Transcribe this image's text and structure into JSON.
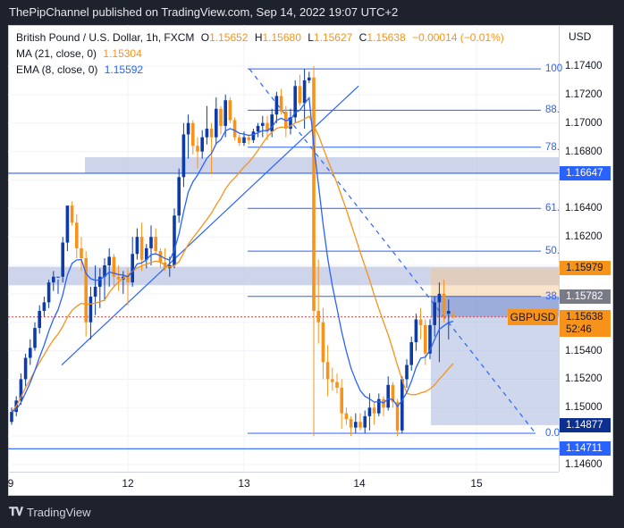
{
  "header": {
    "published": "ThePipChannel published on TradingView.com, Sep 14, 2022 19:07 UTC+2"
  },
  "legend": {
    "symbol": "British Pound / U.S. Dollar, 1h, FXCM",
    "open_label": "O",
    "open": "1.15652",
    "high_label": "H",
    "high": "1.15680",
    "low_label": "L",
    "low": "1.15627",
    "close_label": "C",
    "close": "1.15638",
    "change": "−0.00014 (−0.01%)",
    "ma_label": "MA (21, close, 0)",
    "ma_value": "1.15304",
    "ema_label": "EMA (8, close, 0)",
    "ema_value": "1.15592"
  },
  "price_scale": {
    "currency": "USD",
    "ticks": [
      "1.17400",
      "1.17200",
      "1.17000",
      "1.16800",
      "1.16400",
      "1.16200",
      "1.15400",
      "1.15200",
      "1.15000",
      "1.14600"
    ],
    "labels": [
      {
        "value": "1.16647",
        "bg": "#2962ff",
        "fg": "#ffffff"
      },
      {
        "value": "1.15979",
        "bg": "#f7931a",
        "fg": "#131722"
      },
      {
        "value": "1.15782",
        "bg": "#787b86",
        "fg": "#ffffff"
      },
      {
        "value": "1.15638",
        "countdown": "52:46",
        "bg": "#f7931a",
        "fg": "#131722"
      },
      {
        "value": "1.14877",
        "bg": "#0d2f8f",
        "fg": "#ffffff"
      },
      {
        "value": "1.14711",
        "bg": "#2962ff",
        "fg": "#ffffff"
      }
    ]
  },
  "symbol_tag": "GBPUSD",
  "time_axis": [
    "9",
    "12",
    "13",
    "14",
    "15"
  ],
  "fib_levels": [
    "100",
    "88.",
    "78.",
    "61.",
    "50.",
    "38.",
    "0.0"
  ],
  "colors": {
    "up": "#0d3ba8",
    "down": "#f7931a",
    "ema": "#2962ff",
    "ma": "#f7931a",
    "line": "#2962ff"
  },
  "brand": {
    "name": "TradingView"
  },
  "chart_data": {
    "type": "candlestick",
    "title": "British Pound / U.S. Dollar, 1h, FXCM",
    "xlabel": "",
    "ylabel": "USD",
    "x_ticks": [
      "9",
      "12",
      "13",
      "14",
      "15"
    ],
    "ylim": [
      1.1455,
      1.1752
    ],
    "current_price": 1.15638,
    "ohlc_last": {
      "open": 1.15652,
      "high": 1.1568,
      "low": 1.15627,
      "close": 1.15638
    },
    "indicators": [
      {
        "name": "MA (21, close, 0)",
        "last": 1.15304,
        "color": "#f7931a"
      },
      {
        "name": "EMA (8, close, 0)",
        "last": 1.15592,
        "color": "#2962ff"
      }
    ],
    "horizontal_levels": [
      1.16647,
      1.14711
    ],
    "fibonacci_retracement": {
      "high": 1.1738,
      "low": 1.1482,
      "levels": [
        {
          "ratio": "1",
          "price": 1.1738
        },
        {
          "ratio": "0.886",
          "price": 1.1709
        },
        {
          "ratio": "0.786",
          "price": 1.1683
        },
        {
          "ratio": "0.618",
          "price": 1.164
        },
        {
          "ratio": "0.5",
          "price": 1.161
        },
        {
          "ratio": "0.382",
          "price": 1.15782
        },
        {
          "ratio": "0",
          "price": 1.1482
        }
      ]
    },
    "zones": [
      {
        "type": "supply",
        "from": 1.1668,
        "to": 1.1676
      },
      {
        "type": "demand",
        "from": 1.1586,
        "to": 1.1599
      },
      {
        "type": "short_position",
        "entry": 1.15782,
        "stop": 1.15979,
        "target": 1.14877
      }
    ],
    "candles": [
      [
        1.149,
        1.15,
        1.1488,
        1.1497
      ],
      [
        1.1497,
        1.1508,
        1.1494,
        1.1505
      ],
      [
        1.1505,
        1.1524,
        1.1502,
        1.152
      ],
      [
        1.152,
        1.1538,
        1.1515,
        1.1535
      ],
      [
        1.1535,
        1.1548,
        1.153,
        1.1542
      ],
      [
        1.1542,
        1.156,
        1.154,
        1.1556
      ],
      [
        1.1556,
        1.1572,
        1.1552,
        1.1568
      ],
      [
        1.1568,
        1.1578,
        1.1564,
        1.1574
      ],
      [
        1.1574,
        1.159,
        1.157,
        1.1588
      ],
      [
        1.1588,
        1.1596,
        1.1582,
        1.1592
      ],
      [
        1.1592,
        1.159,
        1.158,
        1.1592
      ],
      [
        1.1592,
        1.162,
        1.1588,
        1.1616
      ],
      [
        1.1616,
        1.1632,
        1.161,
        1.1642
      ],
      [
        1.1642,
        1.1645,
        1.1628,
        1.163
      ],
      [
        1.163,
        1.1636,
        1.1605,
        1.1612
      ],
      [
        1.1612,
        1.162,
        1.1596,
        1.1605
      ],
      [
        1.1605,
        1.161,
        1.155,
        1.156
      ],
      [
        1.156,
        1.1585,
        1.1548,
        1.1578
      ],
      [
        1.1578,
        1.16,
        1.1565,
        1.1585
      ],
      [
        1.1585,
        1.1598,
        1.157,
        1.1592
      ],
      [
        1.1592,
        1.1605,
        1.1575,
        1.16
      ],
      [
        1.16,
        1.1612,
        1.1585,
        1.1606
      ],
      [
        1.1606,
        1.1608,
        1.1585,
        1.1592
      ],
      [
        1.1592,
        1.16,
        1.1582,
        1.159
      ],
      [
        1.159,
        1.1596,
        1.158,
        1.1592
      ],
      [
        1.1592,
        1.1598,
        1.1572,
        1.1588
      ],
      [
        1.1588,
        1.162,
        1.1585,
        1.1608
      ],
      [
        1.1608,
        1.1626,
        1.1604,
        1.162
      ],
      [
        1.162,
        1.163,
        1.1596,
        1.1604
      ],
      [
        1.1604,
        1.1615,
        1.1598,
        1.1612
      ],
      [
        1.1612,
        1.1628,
        1.16,
        1.162
      ],
      [
        1.162,
        1.1626,
        1.1608,
        1.161
      ],
      [
        1.161,
        1.1612,
        1.1598,
        1.1602
      ],
      [
        1.1602,
        1.1612,
        1.1596,
        1.1598
      ],
      [
        1.1598,
        1.1606,
        1.1592,
        1.16
      ],
      [
        1.16,
        1.164,
        1.1598,
        1.1635
      ],
      [
        1.1635,
        1.1668,
        1.163,
        1.1662
      ],
      [
        1.1662,
        1.17,
        1.1655,
        1.1692
      ],
      [
        1.1692,
        1.1706,
        1.1675,
        1.17
      ],
      [
        1.17,
        1.1702,
        1.1678,
        1.1684
      ],
      [
        1.1684,
        1.169,
        1.1668,
        1.168
      ],
      [
        1.168,
        1.1695,
        1.1675,
        1.169
      ],
      [
        1.169,
        1.1712,
        1.1685,
        1.1696
      ],
      [
        1.1696,
        1.17,
        1.1664,
        1.169
      ],
      [
        1.169,
        1.1718,
        1.1685,
        1.171
      ],
      [
        1.171,
        1.1712,
        1.1692,
        1.1698
      ],
      [
        1.1698,
        1.172,
        1.169,
        1.1716
      ],
      [
        1.1716,
        1.1718,
        1.17,
        1.1702
      ],
      [
        1.1702,
        1.1704,
        1.1688,
        1.169
      ],
      [
        1.169,
        1.1692,
        1.1684,
        1.1686
      ],
      [
        1.1686,
        1.1694,
        1.1684,
        1.169
      ],
      [
        1.169,
        1.1692,
        1.1685,
        1.1688
      ],
      [
        1.1688,
        1.1696,
        1.1686,
        1.1694
      ],
      [
        1.1694,
        1.17,
        1.169,
        1.1698
      ],
      [
        1.1698,
        1.1705,
        1.169,
        1.17
      ],
      [
        1.17,
        1.1705,
        1.1688,
        1.1694
      ],
      [
        1.1694,
        1.171,
        1.169,
        1.1706
      ],
      [
        1.1706,
        1.1722,
        1.17,
        1.1719
      ],
      [
        1.1719,
        1.1724,
        1.1706,
        1.1708
      ],
      [
        1.1708,
        1.1712,
        1.169,
        1.1696
      ],
      [
        1.1696,
        1.171,
        1.1692,
        1.1704
      ],
      [
        1.1704,
        1.173,
        1.17,
        1.1726
      ],
      [
        1.1726,
        1.1734,
        1.1712,
        1.1714
      ],
      [
        1.1714,
        1.1738,
        1.1696,
        1.173
      ],
      [
        1.173,
        1.1736,
        1.1728,
        1.1732
      ],
      [
        1.1732,
        1.174,
        1.148,
        1.1568
      ],
      [
        1.1568,
        1.1604,
        1.1545,
        1.156
      ],
      [
        1.156,
        1.157,
        1.152,
        1.1532
      ],
      [
        1.1532,
        1.1544,
        1.1508,
        1.152
      ],
      [
        1.152,
        1.1528,
        1.1512,
        1.1518
      ],
      [
        1.1518,
        1.1524,
        1.151,
        1.1514
      ],
      [
        1.1514,
        1.152,
        1.1485,
        1.1496
      ],
      [
        1.1496,
        1.15,
        1.1488,
        1.1492
      ],
      [
        1.1492,
        1.1494,
        1.148,
        1.1486
      ],
      [
        1.1486,
        1.1496,
        1.1482,
        1.149
      ],
      [
        1.149,
        1.1496,
        1.1484,
        1.1486
      ],
      [
        1.1486,
        1.1498,
        1.1482,
        1.1494
      ],
      [
        1.1494,
        1.151,
        1.1484,
        1.15
      ],
      [
        1.15,
        1.1504,
        1.1488,
        1.1496
      ],
      [
        1.1496,
        1.151,
        1.1494,
        1.1506
      ],
      [
        1.1506,
        1.1508,
        1.1494,
        1.15
      ],
      [
        1.15,
        1.1522,
        1.1498,
        1.1516
      ],
      [
        1.1516,
        1.1518,
        1.15,
        1.1504
      ],
      [
        1.1504,
        1.1506,
        1.148,
        1.1484
      ],
      [
        1.1484,
        1.1522,
        1.1482,
        1.152
      ],
      [
        1.152,
        1.1534,
        1.1514,
        1.153
      ],
      [
        1.153,
        1.155,
        1.1526,
        1.1546
      ],
      [
        1.1546,
        1.1566,
        1.154,
        1.1562
      ],
      [
        1.1562,
        1.157,
        1.1548,
        1.1558
      ],
      [
        1.1558,
        1.1562,
        1.153,
        1.1538
      ],
      [
        1.1538,
        1.1562,
        1.1534,
        1.1558
      ],
      [
        1.1558,
        1.1578,
        1.155,
        1.1574
      ],
      [
        1.1574,
        1.1588,
        1.1532,
        1.158
      ],
      [
        1.158,
        1.159,
        1.156,
        1.1566
      ],
      [
        1.1566,
        1.1576,
        1.1548,
        1.1568
      ],
      [
        1.15652,
        1.1568,
        1.15627,
        1.15638
      ]
    ]
  }
}
